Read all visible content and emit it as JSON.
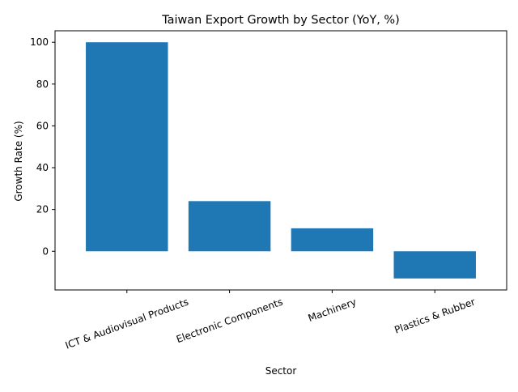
{
  "chart_data": {
    "type": "bar",
    "title": "Taiwan Export Growth by Sector (YoY, %)",
    "xlabel": "Sector",
    "ylabel": "Growth Rate (%)",
    "categories": [
      "ICT & Audiovisual Products",
      "Electronic Components",
      "Machinery",
      "Plastics & Rubber"
    ],
    "values": [
      100,
      24,
      11,
      -13
    ],
    "ylim": [
      -18.5,
      105.5
    ],
    "yticks": [
      0,
      20,
      40,
      60,
      80,
      100
    ],
    "grid": false,
    "legend": "none",
    "bar_color": "#1f77b4",
    "x_tick_rotation_deg": 20
  }
}
